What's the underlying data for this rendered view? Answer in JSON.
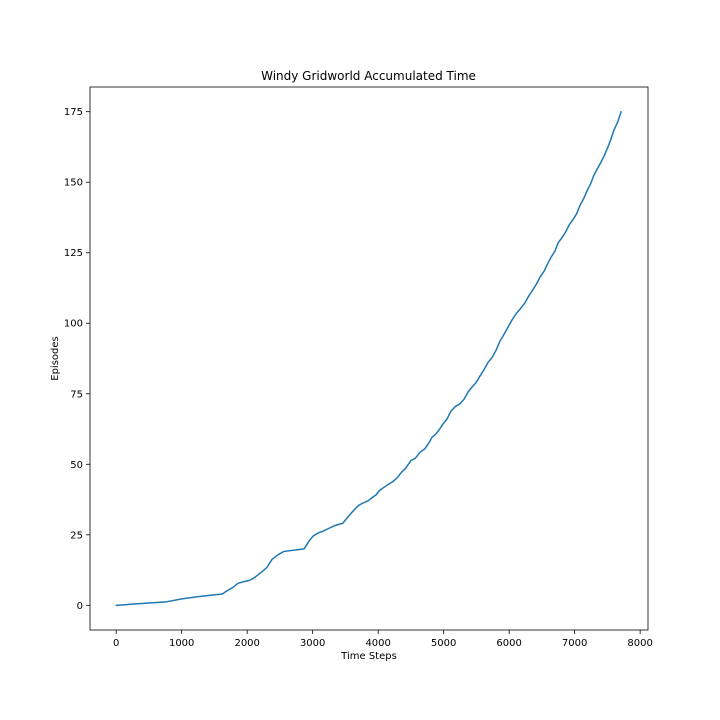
{
  "chart_data": {
    "type": "line",
    "title": "Windy Gridworld Accumulated Time",
    "xlabel": "Time Steps",
    "ylabel": "Episodes",
    "xlim": [
      -400,
      8120
    ],
    "ylim": [
      -8.75,
      183.75
    ],
    "xticks": [
      "0",
      "1000",
      "2000",
      "3000",
      "4000",
      "5000",
      "6000",
      "7000",
      "8000"
    ],
    "yticks": [
      "0",
      "25",
      "50",
      "75",
      "100",
      "125",
      "150",
      "175"
    ],
    "grid": false,
    "legend": "none",
    "series": [
      {
        "color": "#1f77b4",
        "points": [
          [
            0,
            0
          ],
          [
            300,
            0.5
          ],
          [
            760,
            1.2
          ],
          [
            1000,
            2.3
          ],
          [
            1300,
            3.2
          ],
          [
            1620,
            4.0
          ],
          [
            1700,
            5.3
          ],
          [
            1780,
            6.3
          ],
          [
            1860,
            7.8
          ],
          [
            1950,
            8.4
          ],
          [
            2030,
            8.8
          ],
          [
            2090,
            9.5
          ],
          [
            2150,
            10.5
          ],
          [
            2230,
            12.0
          ],
          [
            2300,
            13.4
          ],
          [
            2380,
            16.3
          ],
          [
            2470,
            17.9
          ],
          [
            2560,
            19.1
          ],
          [
            2870,
            20.0
          ],
          [
            2950,
            23.0
          ],
          [
            3010,
            24.6
          ],
          [
            3080,
            25.6
          ],
          [
            3150,
            26.2
          ],
          [
            3230,
            27.1
          ],
          [
            3330,
            28.2
          ],
          [
            3460,
            29.1
          ],
          [
            3540,
            31.4
          ],
          [
            3640,
            34.0
          ],
          [
            3700,
            35.4
          ],
          [
            3780,
            36.4
          ],
          [
            3850,
            37.1
          ],
          [
            3920,
            38.4
          ],
          [
            3970,
            39.2
          ],
          [
            4020,
            40.7
          ],
          [
            4080,
            41.7
          ],
          [
            4150,
            42.8
          ],
          [
            4220,
            43.8
          ],
          [
            4290,
            45.2
          ],
          [
            4360,
            47.3
          ],
          [
            4420,
            48.6
          ],
          [
            4500,
            51.3
          ],
          [
            4570,
            52.2
          ],
          [
            4640,
            54.3
          ],
          [
            4710,
            55.4
          ],
          [
            4780,
            57.8
          ],
          [
            4820,
            59.5
          ],
          [
            4880,
            60.7
          ],
          [
            4930,
            62.2
          ],
          [
            4990,
            64.3
          ],
          [
            5050,
            66.0
          ],
          [
            5110,
            68.8
          ],
          [
            5180,
            70.5
          ],
          [
            5240,
            71.3
          ],
          [
            5310,
            73.0
          ],
          [
            5370,
            75.5
          ],
          [
            5430,
            77.3
          ],
          [
            5490,
            78.8
          ],
          [
            5550,
            81.1
          ],
          [
            5620,
            83.7
          ],
          [
            5680,
            86.2
          ],
          [
            5740,
            87.9
          ],
          [
            5800,
            90.4
          ],
          [
            5860,
            93.7
          ],
          [
            5920,
            96.0
          ],
          [
            5980,
            98.5
          ],
          [
            6050,
            101.4
          ],
          [
            6110,
            103.5
          ],
          [
            6170,
            105.1
          ],
          [
            6240,
            107.2
          ],
          [
            6300,
            109.7
          ],
          [
            6360,
            111.8
          ],
          [
            6420,
            114.0
          ],
          [
            6480,
            116.7
          ],
          [
            6530,
            118.3
          ],
          [
            6590,
            121.2
          ],
          [
            6640,
            123.4
          ],
          [
            6700,
            125.6
          ],
          [
            6750,
            128.6
          ],
          [
            6810,
            130.4
          ],
          [
            6860,
            132.3
          ],
          [
            6920,
            135.0
          ],
          [
            6980,
            136.9
          ],
          [
            7030,
            138.8
          ],
          [
            7080,
            141.7
          ],
          [
            7140,
            144.3
          ],
          [
            7190,
            147.0
          ],
          [
            7240,
            149.2
          ],
          [
            7290,
            152.3
          ],
          [
            7340,
            154.5
          ],
          [
            7400,
            157.0
          ],
          [
            7450,
            159.3
          ],
          [
            7500,
            162.0
          ],
          [
            7550,
            165.0
          ],
          [
            7600,
            168.5
          ],
          [
            7660,
            171.5
          ],
          [
            7710,
            175.0
          ]
        ]
      }
    ]
  }
}
